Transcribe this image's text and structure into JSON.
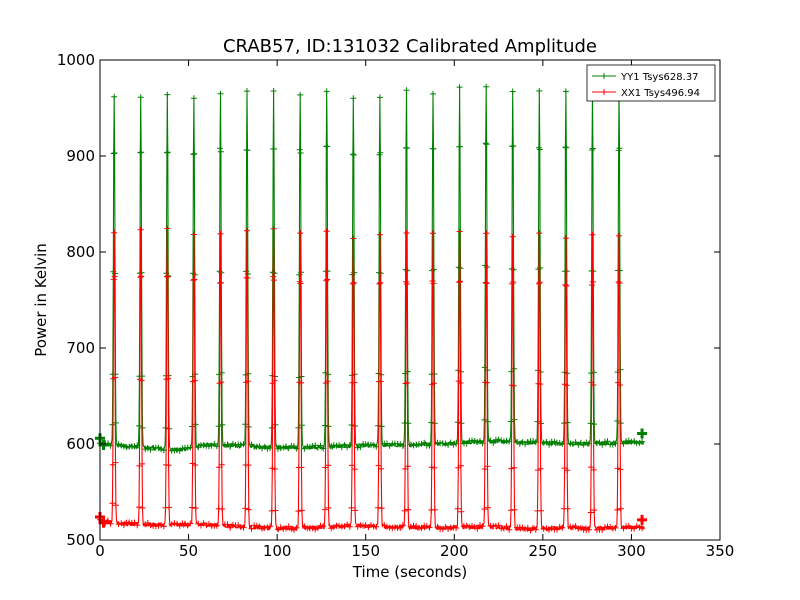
{
  "chart_data": {
    "type": "line",
    "title": "CRAB57, ID:131032 Calibrated Amplitude",
    "xlabel": "Time (seconds)",
    "ylabel": "Power in Kelvin",
    "xlim": [
      0,
      350
    ],
    "ylim": [
      500,
      1000
    ],
    "xticks": [
      0,
      50,
      100,
      150,
      200,
      250,
      300,
      350
    ],
    "yticks": [
      500,
      600,
      700,
      800,
      900,
      1000
    ],
    "legend_position": "top-right",
    "peak_times": [
      8,
      23,
      38,
      53,
      68,
      83,
      98,
      113,
      128,
      143,
      158,
      173,
      188,
      203,
      218,
      233,
      248,
      263,
      278,
      293
    ],
    "pulse_width_seconds": 1.0,
    "time_range": [
      0,
      307
    ],
    "series": [
      {
        "name": "YY1 Tsys628.37",
        "color": "#008000",
        "baseline": 599,
        "baseline_points": [
          [
            0,
            600
          ],
          [
            20,
            597
          ],
          [
            45,
            594
          ],
          [
            60,
            599
          ],
          [
            80,
            598
          ],
          [
            110,
            596
          ],
          [
            140,
            598
          ],
          [
            170,
            599
          ],
          [
            200,
            601
          ],
          [
            220,
            603
          ],
          [
            250,
            601
          ],
          [
            270,
            600
          ],
          [
            300,
            602
          ],
          [
            307,
            601
          ]
        ],
        "peaks": [
          963,
          962,
          964,
          962,
          966,
          966,
          968,
          965,
          969,
          961,
          962,
          967,
          966,
          970,
          974,
          969,
          968,
          969,
          966,
          967
        ],
        "end_markers": [
          [
            0,
            606
          ],
          [
            2,
            599
          ],
          [
            306,
            611
          ]
        ]
      },
      {
        "name": "XX1 Tsys496.94",
        "color": "#ff0000",
        "baseline": 515,
        "baseline_points": [
          [
            0,
            520
          ],
          [
            20,
            516
          ],
          [
            40,
            516
          ],
          [
            60,
            516
          ],
          [
            80,
            514
          ],
          [
            100,
            512
          ],
          [
            120,
            513
          ],
          [
            140,
            515
          ],
          [
            160,
            514
          ],
          [
            180,
            513
          ],
          [
            200,
            513
          ],
          [
            220,
            514
          ],
          [
            240,
            511
          ],
          [
            260,
            513
          ],
          [
            280,
            512
          ],
          [
            300,
            513
          ],
          [
            307,
            513
          ]
        ],
        "peaks": [
          822,
          824,
          823,
          820,
          818,
          823,
          823,
          818,
          821,
          815,
          818,
          818,
          818,
          820,
          818,
          817,
          818,
          815,
          817,
          817
        ],
        "end_markers": [
          [
            0,
            524
          ],
          [
            2,
            518
          ],
          [
            306,
            521
          ]
        ]
      }
    ]
  }
}
